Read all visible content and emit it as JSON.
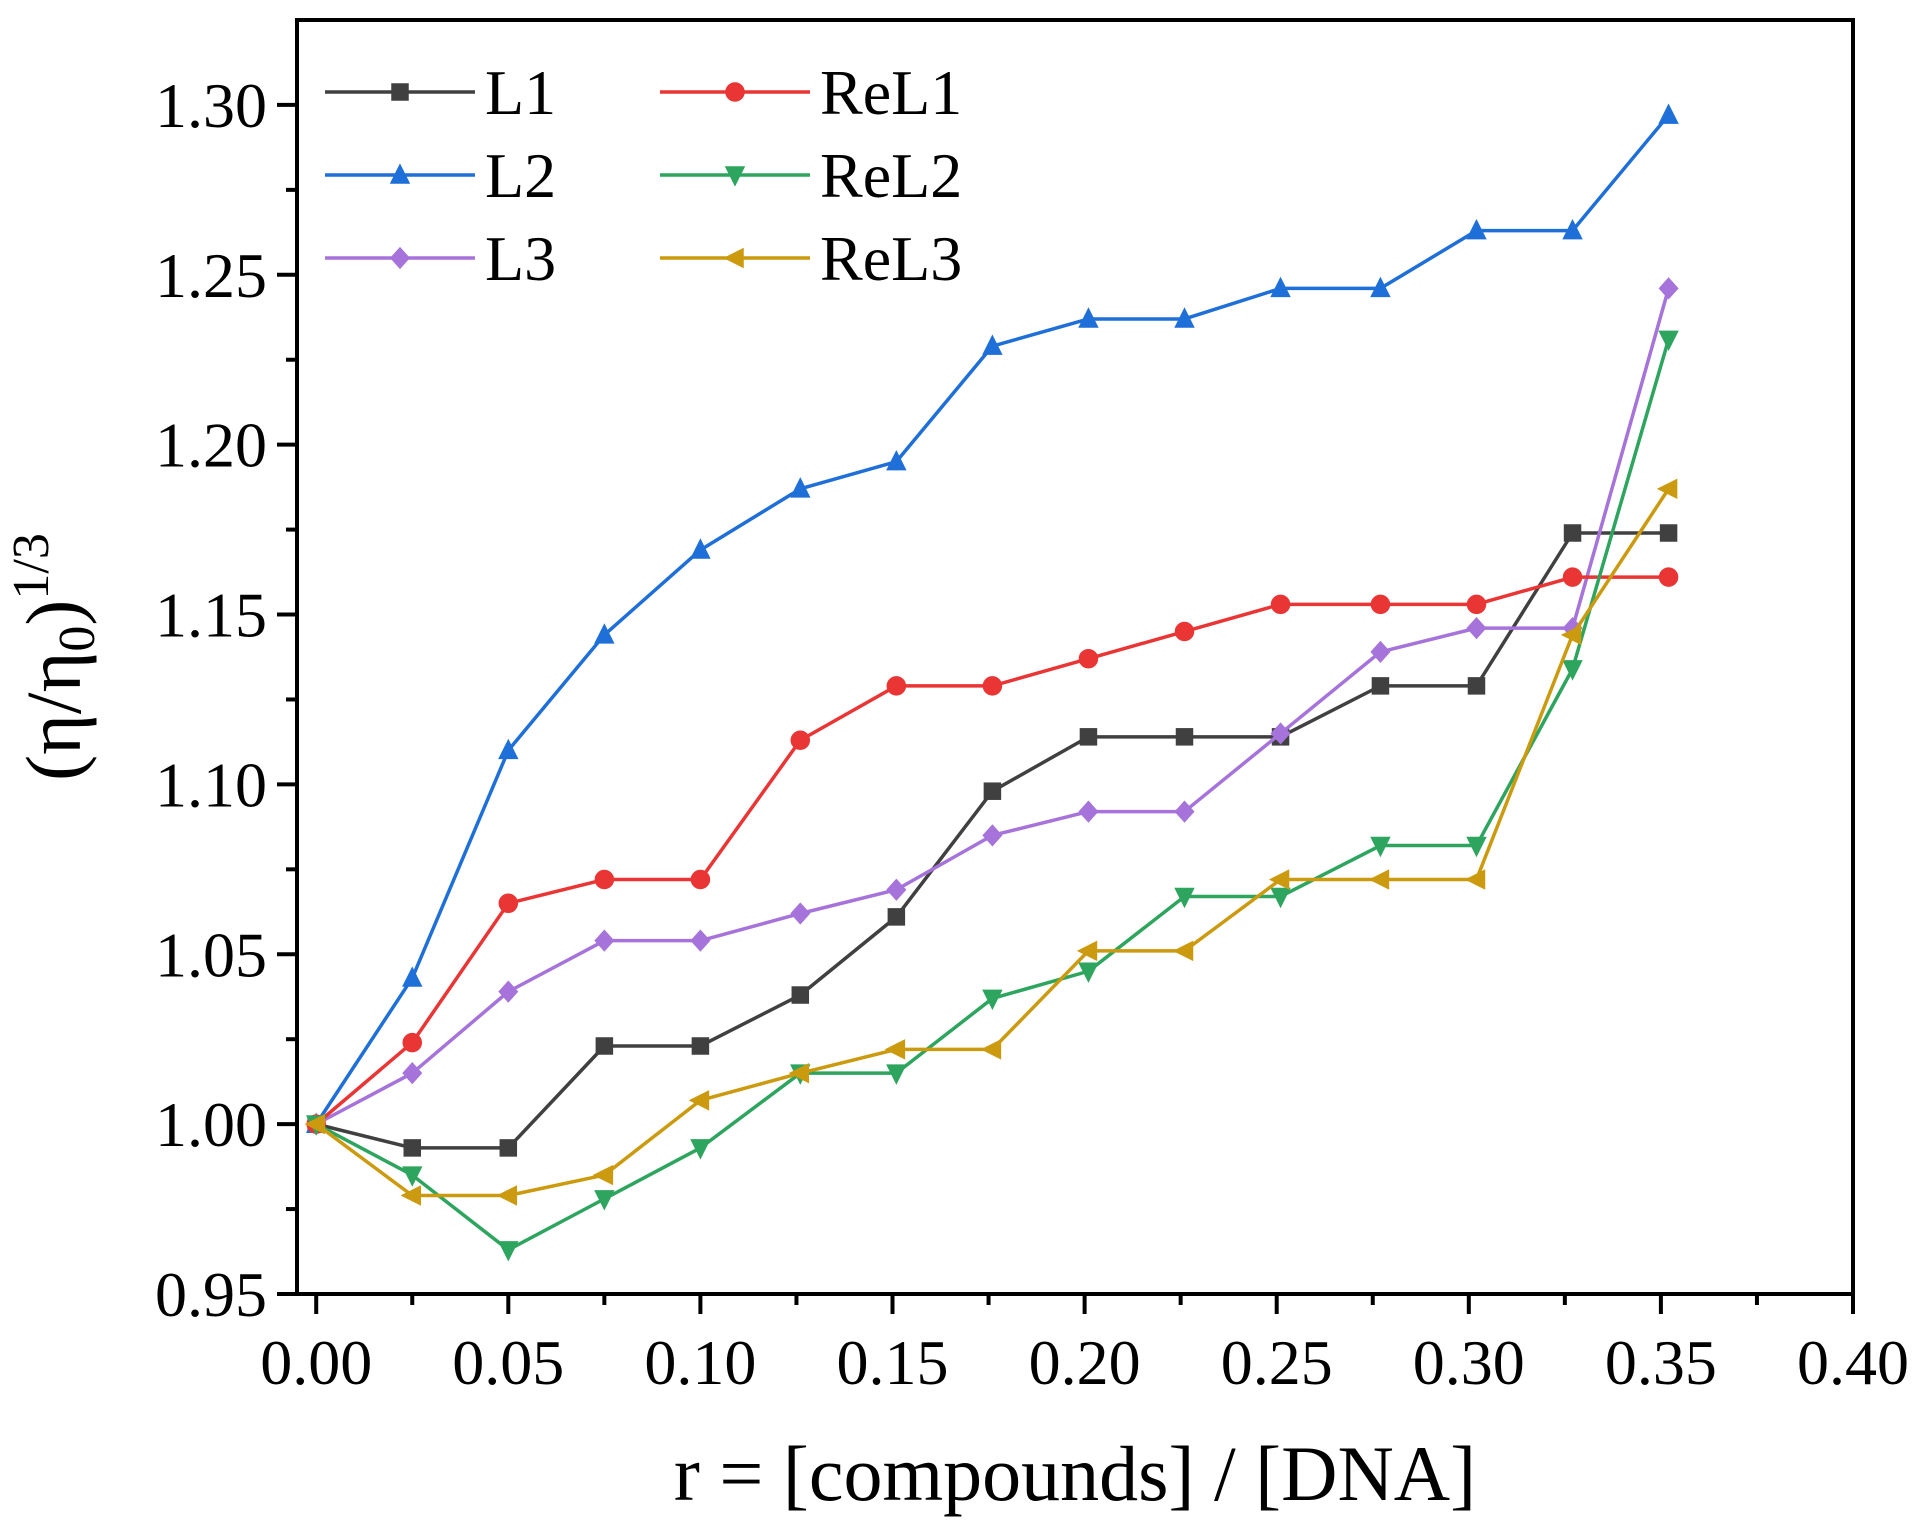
{
  "chart_data": {
    "type": "line",
    "title": "",
    "xlabel": "r = [compounds] / [DNA]",
    "ylabel": {
      "main": "(η/η",
      "sub": "0",
      "close": ")",
      "sup": "1/3"
    },
    "xlim": [
      -0.005,
      0.4
    ],
    "ylim": [
      0.95,
      1.325
    ],
    "x_ticks": [
      0.0,
      0.05,
      0.1,
      0.15,
      0.2,
      0.25,
      0.3,
      0.35,
      0.4
    ],
    "x_tick_labels": [
      "0.00",
      "0.05",
      "0.10",
      "0.15",
      "0.20",
      "0.25",
      "0.30",
      "0.35",
      "0.40"
    ],
    "y_ticks": [
      0.95,
      1.0,
      1.05,
      1.1,
      1.15,
      1.2,
      1.25,
      1.3
    ],
    "y_tick_labels": [
      "0.95",
      "1.00",
      "1.05",
      "1.10",
      "1.15",
      "1.20",
      "1.25",
      "1.30"
    ],
    "x": [
      0.0,
      0.025,
      0.05,
      0.075,
      0.1,
      0.126,
      0.151,
      0.176,
      0.201,
      0.226,
      0.251,
      0.277,
      0.302,
      0.327,
      0.352
    ],
    "series": [
      {
        "name": "L1",
        "color": "#404040",
        "marker": "square",
        "values": [
          1.0,
          0.993,
          0.993,
          1.023,
          1.023,
          1.038,
          1.061,
          1.098,
          1.114,
          1.114,
          1.114,
          1.129,
          1.129,
          1.174,
          1.174
        ]
      },
      {
        "name": "L2",
        "color": "#1f6fd9",
        "marker": "triangle-up",
        "values": [
          1.0,
          1.043,
          1.11,
          1.144,
          1.169,
          1.187,
          1.195,
          1.229,
          1.237,
          1.237,
          1.246,
          1.246,
          1.263,
          1.263,
          1.297
        ]
      },
      {
        "name": "L3",
        "color": "#a673db",
        "marker": "diamond",
        "values": [
          1.0,
          1.015,
          1.039,
          1.054,
          1.054,
          1.062,
          1.069,
          1.085,
          1.092,
          1.092,
          1.115,
          1.139,
          1.146,
          1.146,
          1.246
        ]
      },
      {
        "name": "ReL1",
        "color": "#ea3535",
        "marker": "circle",
        "values": [
          1.0,
          1.024,
          1.065,
          1.072,
          1.072,
          1.113,
          1.129,
          1.129,
          1.137,
          1.145,
          1.153,
          1.153,
          1.153,
          1.161,
          1.161
        ]
      },
      {
        "name": "ReL2",
        "color": "#2ea55e",
        "marker": "triangle-down",
        "values": [
          1.0,
          0.985,
          0.963,
          0.978,
          0.993,
          1.015,
          1.015,
          1.037,
          1.045,
          1.067,
          1.067,
          1.082,
          1.082,
          1.134,
          1.231
        ]
      },
      {
        "name": "ReL3",
        "color": "#cc9a0f",
        "marker": "triangle-left",
        "values": [
          1.0,
          0.979,
          0.979,
          0.985,
          1.007,
          1.015,
          1.022,
          1.022,
          1.051,
          1.051,
          1.072,
          1.072,
          1.072,
          1.144,
          1.187
        ]
      }
    ],
    "legend": {
      "placement": "top-left",
      "columns": 2,
      "order": [
        "L1",
        "ReL1",
        "L2",
        "ReL2",
        "L3",
        "ReL3"
      ]
    },
    "grid": false
  }
}
